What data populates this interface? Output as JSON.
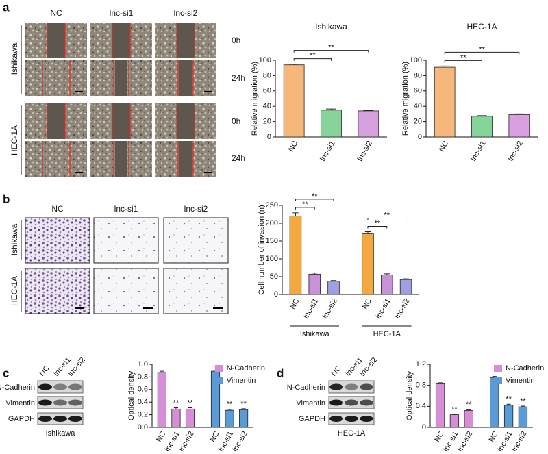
{
  "panels": {
    "labels": [
      "a",
      "b",
      "c",
      "d"
    ],
    "a": {
      "columns": [
        "NC",
        "lnc-si1",
        "lnc-si2"
      ],
      "rows": [
        "Ishikawa",
        "HEC-1A"
      ],
      "times": [
        "0h",
        "24h",
        "0h",
        "24h"
      ]
    },
    "b": {
      "columns": [
        "NC",
        "lnc-si1",
        "lnc-si2"
      ],
      "rows": [
        "Ishikawa",
        "HEC-1A"
      ]
    },
    "c": {
      "lanes": [
        "NC",
        "lnc-si1",
        "lnc-si2"
      ],
      "proteins": [
        "N-Cadherin",
        "Vimentin",
        "GAPDH"
      ],
      "cell_line": "Ishikawa"
    },
    "d": {
      "lanes": [
        "NC",
        "lnc-si1",
        "lnc-si2"
      ],
      "proteins": [
        "N-Cadherin",
        "Vimentin",
        "GAPDH"
      ],
      "cell_line": "HEC-1A"
    }
  },
  "chart_data": [
    {
      "type": "bar",
      "title": "Ishikawa",
      "ylabel": "Relative migration (%)",
      "categories": [
        "NC",
        "lnc-si1",
        "lnc-si2"
      ],
      "values": [
        94,
        35,
        34
      ],
      "errors": [
        1,
        1.5,
        0.8
      ],
      "colors": [
        "#f6b77b",
        "#86d49a",
        "#d9a0e0"
      ],
      "ylim": [
        0,
        100
      ],
      "yticks": [
        0,
        20,
        40,
        60,
        80,
        100
      ],
      "annotations": [
        "**",
        "**"
      ]
    },
    {
      "type": "bar",
      "title": "HEC-1A",
      "ylabel": "Relative migration (%)",
      "categories": [
        "NC",
        "lnc-si1",
        "lnc-si2"
      ],
      "values": [
        91,
        27,
        29
      ],
      "errors": [
        1.5,
        0.8,
        1
      ],
      "colors": [
        "#f6b77b",
        "#86d49a",
        "#d9a0e0"
      ],
      "ylim": [
        0,
        100
      ],
      "yticks": [
        0,
        20,
        40,
        60,
        80,
        100
      ],
      "annotations": [
        "**",
        "**"
      ]
    },
    {
      "type": "bar",
      "ylabel": "Cell number of invasion (n)",
      "categories": [
        "NC",
        "lnc-si1",
        "lnc-si2"
      ],
      "colors": [
        "#f5a83f",
        "#c891d8",
        "#9fa0e3"
      ],
      "series": [
        {
          "name": "Ishikawa",
          "values": [
            220,
            57,
            37
          ],
          "errors": [
            9,
            3,
            2
          ]
        },
        {
          "name": "HEC-1A",
          "values": [
            172,
            55,
            42
          ],
          "errors": [
            4,
            3,
            2
          ]
        }
      ],
      "ylim": [
        0,
        250
      ],
      "yticks": [
        0,
        50,
        100,
        150,
        200,
        250
      ],
      "annotations": [
        "**",
        "**",
        "**",
        "**"
      ]
    },
    {
      "type": "bar",
      "ylabel": "Optical density",
      "categories": [
        "NC",
        "lnc-si1",
        "lnc-si2"
      ],
      "series": [
        {
          "name": "N-Cadherin",
          "color": "#d68fd6",
          "values": [
            0.87,
            0.29,
            0.29
          ],
          "errors": [
            0.02,
            0.02,
            0.02
          ]
        },
        {
          "name": "Vimentin",
          "color": "#5b9bd5",
          "values": [
            0.89,
            0.27,
            0.28
          ],
          "errors": [
            0.015,
            0.015,
            0.015
          ]
        }
      ],
      "ylim": [
        0,
        1
      ],
      "yticks": [
        {
          "value": 0,
          "label": "0.0"
        },
        0.2,
        0.4,
        0.6,
        0.8,
        {
          "value": 1,
          "label": "1.0"
        }
      ],
      "legend": "upper right",
      "annotations": [
        "**",
        "**",
        "**",
        "**"
      ]
    },
    {
      "type": "bar",
      "ylabel": "Optical density",
      "categories": [
        "NC",
        "lnc-si1",
        "lnc-si2"
      ],
      "series": [
        {
          "name": "N-Cadherin",
          "color": "#d68fd6",
          "values": [
            0.83,
            0.24,
            0.32
          ],
          "errors": [
            0.02,
            0.01,
            0.015
          ]
        },
        {
          "name": "Vimentin",
          "color": "#5b9bd5",
          "values": [
            0.95,
            0.42,
            0.39
          ],
          "errors": [
            0.02,
            0.02,
            0.015
          ]
        }
      ],
      "ylim": [
        0,
        1.2
      ],
      "yticks": [
        0,
        0.4,
        0.8,
        1.2
      ],
      "legend": "upper right",
      "annotations": [
        "**",
        "**",
        "**",
        "**"
      ]
    }
  ]
}
